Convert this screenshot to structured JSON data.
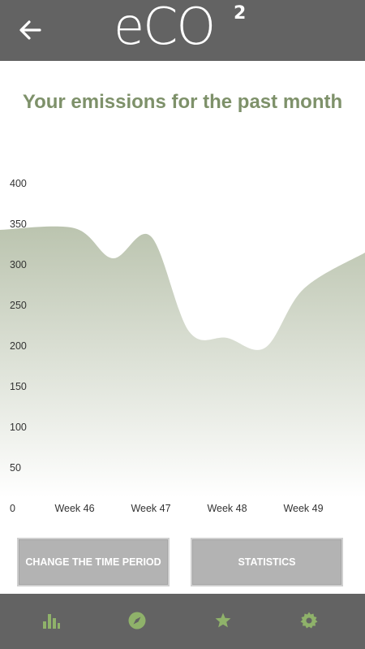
{
  "header": {
    "logo_text": "eCO",
    "logo_superscript": "2",
    "back_icon": "arrow-left-icon"
  },
  "page": {
    "title": "Your emissions for the past month"
  },
  "chart_data": {
    "type": "area",
    "title": "",
    "xlabel": "",
    "ylabel": "",
    "ylim": [
      0,
      400
    ],
    "yticks": [
      "0",
      "50",
      "100",
      "150",
      "200",
      "250",
      "300",
      "350",
      "400"
    ],
    "xticks": [
      "Week 46",
      "Week 47",
      "Week 48",
      "Week 49"
    ],
    "x": [
      45.5,
      46.0,
      46.5,
      47.0,
      47.5,
      48.0,
      48.5,
      49.0,
      49.5
    ],
    "values": [
      330,
      332,
      295,
      322,
      205,
      197,
      185,
      257,
      302
    ],
    "fill_top_color": "#bbc4af",
    "fill_bottom_color": "#ffffff"
  },
  "buttons": {
    "change_period": "CHANGE THE TIME PERIOD",
    "statistics": "STATISTICS"
  },
  "bottom_nav": {
    "items": [
      {
        "icon": "bar-chart-icon"
      },
      {
        "icon": "compass-icon"
      },
      {
        "icon": "star-icon"
      },
      {
        "icon": "gear-icon"
      }
    ],
    "icon_color": "#8fb26a"
  },
  "colors": {
    "bar_bg": "#636363",
    "title": "#7e916a",
    "button_bg": "#b3b3b3"
  }
}
